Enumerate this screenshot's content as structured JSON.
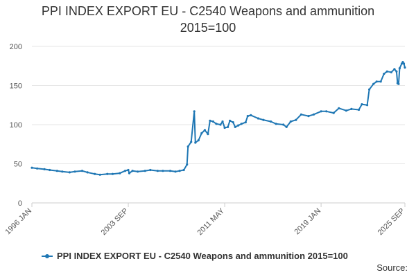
{
  "chart_data": {
    "type": "line",
    "title": "PPI INDEX EXPORT EU - C2540 Weapons and ammunition",
    "subtitle": "2015=100",
    "xlabel": "",
    "ylabel": "",
    "ylim": [
      0,
      200
    ],
    "y_ticks": [
      0,
      50,
      100,
      150,
      200
    ],
    "x_ticks": [
      "1996 JAN",
      "2003 SEP",
      "2011 MAY",
      "2019 JAN",
      "2025 SEP"
    ],
    "x_range": [
      "1996-01",
      "2025-09"
    ],
    "grid": "horizontal",
    "legend_position": "bottom",
    "colors": {
      "series": "#1f77b4",
      "grid": "#e6e6e6",
      "axis": "#cccccc",
      "text": "#333333"
    },
    "series": [
      {
        "name": "PPI INDEX EXPORT EU - C2540 Weapons and ammunition 2015=100",
        "points": [
          [
            "1996-01",
            45
          ],
          [
            "1996-06",
            44
          ],
          [
            "1997-01",
            43
          ],
          [
            "1997-06",
            42
          ],
          [
            "1998-01",
            41
          ],
          [
            "1998-06",
            40
          ],
          [
            "1999-01",
            39
          ],
          [
            "1999-06",
            40
          ],
          [
            "2000-01",
            41
          ],
          [
            "2000-06",
            39
          ],
          [
            "2001-01",
            37
          ],
          [
            "2001-06",
            36
          ],
          [
            "2002-01",
            37
          ],
          [
            "2002-06",
            37
          ],
          [
            "2003-01",
            38
          ],
          [
            "2003-06",
            41
          ],
          [
            "2003-09",
            42
          ],
          [
            "2003-10",
            38
          ],
          [
            "2004-01",
            41
          ],
          [
            "2004-06",
            40
          ],
          [
            "2005-01",
            41
          ],
          [
            "2005-06",
            42
          ],
          [
            "2006-01",
            41
          ],
          [
            "2006-06",
            41
          ],
          [
            "2007-01",
            41
          ],
          [
            "2007-06",
            40
          ],
          [
            "2007-10",
            41
          ],
          [
            "2008-02",
            42
          ],
          [
            "2008-05",
            49
          ],
          [
            "2008-06",
            72
          ],
          [
            "2008-09",
            78
          ],
          [
            "2008-12",
            117
          ],
          [
            "2009-01",
            77
          ],
          [
            "2009-04",
            80
          ],
          [
            "2009-07",
            89
          ],
          [
            "2009-10",
            93
          ],
          [
            "2010-01",
            88
          ],
          [
            "2010-03",
            105
          ],
          [
            "2010-06",
            104
          ],
          [
            "2010-09",
            101
          ],
          [
            "2011-01",
            100
          ],
          [
            "2011-03",
            104
          ],
          [
            "2011-05",
            96
          ],
          [
            "2011-08",
            97
          ],
          [
            "2011-10",
            105
          ],
          [
            "2012-01",
            103
          ],
          [
            "2012-03",
            97
          ],
          [
            "2012-06",
            99
          ],
          [
            "2012-09",
            101
          ],
          [
            "2013-01",
            103
          ],
          [
            "2013-03",
            111
          ],
          [
            "2013-06",
            112
          ],
          [
            "2014-01",
            108
          ],
          [
            "2014-06",
            106
          ],
          [
            "2015-01",
            104
          ],
          [
            "2015-06",
            101
          ],
          [
            "2016-01",
            100
          ],
          [
            "2016-04",
            97
          ],
          [
            "2016-08",
            104
          ],
          [
            "2017-01",
            106
          ],
          [
            "2017-06",
            113
          ],
          [
            "2018-01",
            111
          ],
          [
            "2018-06",
            113
          ],
          [
            "2019-01",
            117
          ],
          [
            "2019-06",
            117
          ],
          [
            "2020-01",
            115
          ],
          [
            "2020-06",
            121
          ],
          [
            "2021-01",
            118
          ],
          [
            "2021-06",
            120
          ],
          [
            "2022-01",
            119
          ],
          [
            "2022-04",
            126
          ],
          [
            "2022-09",
            125
          ],
          [
            "2022-11",
            145
          ],
          [
            "2023-03",
            152
          ],
          [
            "2023-06",
            155
          ],
          [
            "2023-10",
            155
          ],
          [
            "2024-01",
            165
          ],
          [
            "2024-04",
            168
          ],
          [
            "2024-08",
            167
          ],
          [
            "2024-11",
            171
          ],
          [
            "2025-01",
            168
          ],
          [
            "2025-02",
            153
          ],
          [
            "2025-03",
            152
          ],
          [
            "2025-04",
            172
          ],
          [
            "2025-06",
            178
          ],
          [
            "2025-07",
            180
          ],
          [
            "2025-08",
            178
          ],
          [
            "2025-09",
            173
          ]
        ]
      }
    ],
    "source_label": "Source:"
  }
}
